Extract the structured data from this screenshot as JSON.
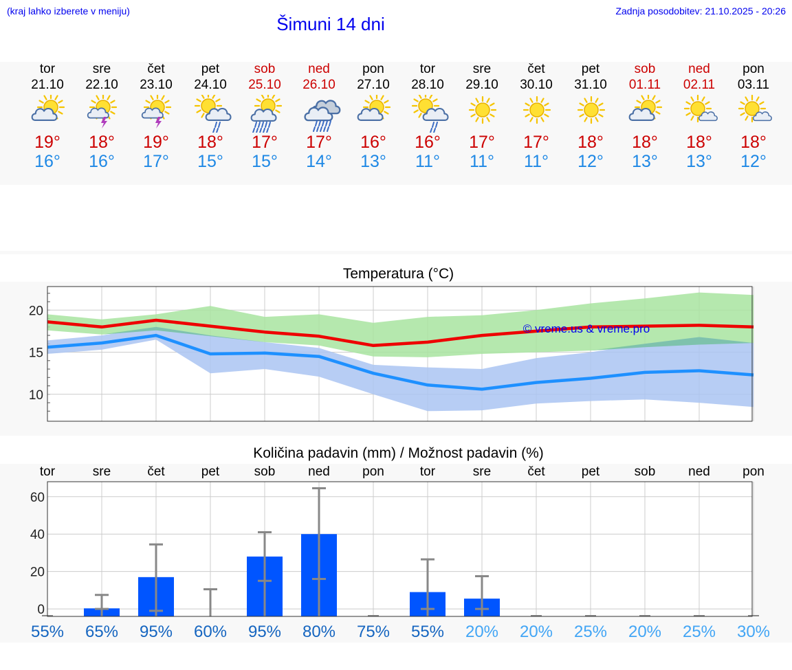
{
  "header": {
    "location_hint": "(kraj lahko izberete v meniju)",
    "title": "Šimuni 14 dni",
    "updated": "Zadnja posodobitev: 21.10.2025 - 20:26"
  },
  "days": [
    {
      "name": "tor",
      "date": "21.10",
      "icon": "sun-cloud-icon",
      "max": "19°",
      "min": "16°",
      "weekend": false
    },
    {
      "name": "sre",
      "date": "22.10",
      "icon": "sun-thunder-icon",
      "max": "18°",
      "min": "16°",
      "weekend": false
    },
    {
      "name": "čet",
      "date": "23.10",
      "icon": "sun-thunder-icon",
      "max": "19°",
      "min": "17°",
      "weekend": false
    },
    {
      "name": "pet",
      "date": "24.10",
      "icon": "sun-cloud-rain-icon",
      "max": "18°",
      "min": "15°",
      "weekend": false
    },
    {
      "name": "sob",
      "date": "25.10",
      "icon": "sun-cloud-heavy-rain-icon",
      "max": "17°",
      "min": "15°",
      "weekend": true
    },
    {
      "name": "ned",
      "date": "26.10",
      "icon": "cloud-heavy-rain-icon",
      "max": "17°",
      "min": "14°",
      "weekend": true
    },
    {
      "name": "pon",
      "date": "27.10",
      "icon": "sun-cloud-icon",
      "max": "16°",
      "min": "13°",
      "weekend": false
    },
    {
      "name": "tor",
      "date": "28.10",
      "icon": "sun-cloud-rain-icon",
      "max": "16°",
      "min": "11°",
      "weekend": false
    },
    {
      "name": "sre",
      "date": "29.10",
      "icon": "sun-icon",
      "max": "17°",
      "min": "11°",
      "weekend": false
    },
    {
      "name": "čet",
      "date": "30.10",
      "icon": "sun-icon",
      "max": "17°",
      "min": "11°",
      "weekend": false
    },
    {
      "name": "pet",
      "date": "31.10",
      "icon": "sun-icon",
      "max": "18°",
      "min": "12°",
      "weekend": false
    },
    {
      "name": "sob",
      "date": "01.11",
      "icon": "sun-cloud-icon",
      "max": "18°",
      "min": "13°",
      "weekend": true
    },
    {
      "name": "ned",
      "date": "02.11",
      "icon": "sun-small-cloud-icon",
      "max": "18°",
      "min": "13°",
      "weekend": true
    },
    {
      "name": "pon",
      "date": "03.11",
      "icon": "sun-small-cloud-icon",
      "max": "18°",
      "min": "12°",
      "weekend": false
    }
  ],
  "colors": {
    "max_line": "#ee0000",
    "min_line": "#1e90ff",
    "max_band": "#a8e4a0",
    "min_band": "#aac4f2",
    "bar": "#0055ff",
    "whisker": "#888888",
    "title": "#0000ee",
    "weekend": "#cc0000",
    "pct_dark": "#1565c0",
    "pct_light": "#42a5f5"
  },
  "chart_data": [
    {
      "type": "line",
      "title": "Temperatura (°C)",
      "watermark": "© vreme.us & vreme.pro",
      "ylim": [
        6.8,
        22.8
      ],
      "yticks": [
        10,
        15,
        20
      ],
      "grid": true,
      "x": [
        "21.10",
        "22.10",
        "23.10",
        "24.10",
        "25.10",
        "26.10",
        "27.10",
        "28.10",
        "29.10",
        "30.10",
        "31.10",
        "01.11",
        "02.11",
        "03.11"
      ],
      "series": [
        {
          "values": [
            18.6,
            18.0,
            18.8,
            18.1,
            17.4,
            16.9,
            15.8,
            16.2,
            17.0,
            17.5,
            18.0,
            18.1,
            18.2,
            18.0
          ],
          "band_low": [
            17.6,
            17.1,
            17.6,
            16.9,
            16.2,
            15.8,
            14.5,
            14.4,
            14.8,
            15.0,
            15.2,
            15.6,
            15.9,
            16.1
          ],
          "band_high": [
            19.5,
            18.9,
            19.5,
            20.5,
            19.2,
            19.5,
            18.5,
            19.2,
            19.4,
            20.0,
            20.8,
            21.4,
            22.1,
            21.8
          ]
        },
        {
          "values": [
            15.6,
            16.1,
            17.0,
            14.8,
            14.9,
            14.5,
            12.5,
            11.1,
            10.6,
            11.4,
            11.9,
            12.6,
            12.8,
            12.3
          ],
          "band_low": [
            14.8,
            15.3,
            16.5,
            12.5,
            13.0,
            12.1,
            10.0,
            8.0,
            8.1,
            8.9,
            9.2,
            9.4,
            9.0,
            8.5
          ],
          "band_high": [
            16.4,
            17.0,
            18.0,
            17.0,
            16.2,
            15.5,
            13.5,
            13.2,
            13.0,
            14.3,
            15.0,
            16.0,
            16.8,
            16.1
          ]
        }
      ]
    },
    {
      "type": "bar",
      "title": "Količina padavin (mm) / Možnost padavin (%)",
      "ylim": [
        -4,
        68
      ],
      "yticks": [
        0,
        20,
        40,
        60
      ],
      "grid": true,
      "categories": [
        "tor",
        "sre",
        "čet",
        "pet",
        "sob",
        "ned",
        "pon",
        "tor",
        "sre",
        "čet",
        "pet",
        "sob",
        "ned",
        "pon"
      ],
      "values": [
        0,
        0.3,
        17,
        0,
        28,
        40,
        0,
        9,
        5.5,
        0,
        0,
        0,
        0,
        0
      ],
      "err_low": [
        0,
        0,
        -1,
        0,
        15,
        16,
        0,
        0,
        0,
        0,
        0,
        0,
        0,
        0
      ],
      "err_high": [
        0,
        7.5,
        34.5,
        10.5,
        41,
        64.5,
        0,
        26.5,
        17.5,
        0,
        0,
        0,
        0,
        0
      ],
      "probability": [
        "55%",
        "65%",
        "95%",
        "60%",
        "95%",
        "80%",
        "75%",
        "55%",
        "20%",
        "20%",
        "25%",
        "20%",
        "25%",
        "30%"
      ]
    }
  ]
}
